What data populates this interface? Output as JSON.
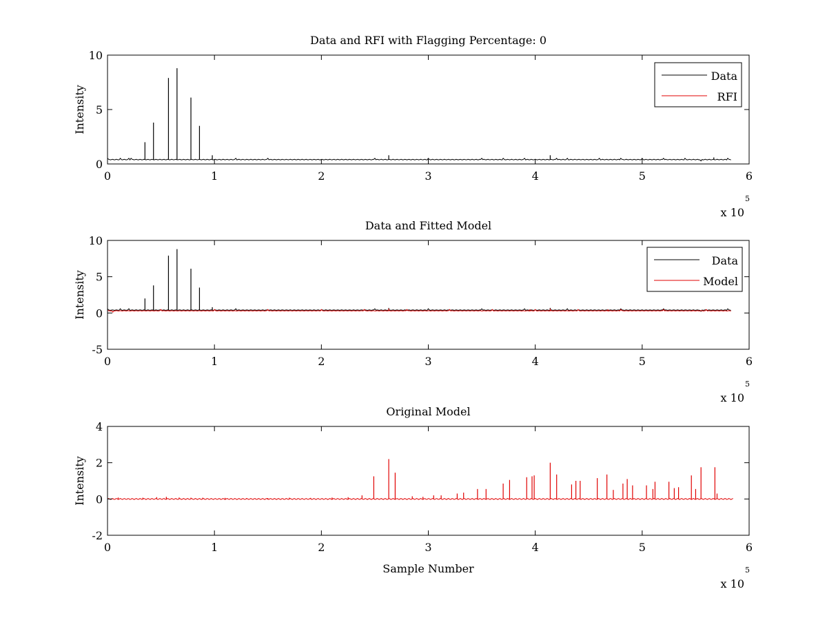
{
  "chart_data": [
    {
      "type": "line",
      "title": "Data and RFI with Flagging Percentage: 0",
      "xlabel": "",
      "ylabel": "Intensity",
      "xlim": [
        0,
        6
      ],
      "ylim": [
        0,
        10
      ],
      "xticks": [
        "0",
        "1",
        "2",
        "3",
        "4",
        "5",
        "6"
      ],
      "yticks": [
        "0",
        "5",
        "10"
      ],
      "x_multiplier": {
        "base": "x 10",
        "power": "5"
      },
      "legend": {
        "position": "top-right",
        "entries": [
          "Data",
          "RFI"
        ]
      },
      "series": [
        {
          "name": "Data",
          "color": "#000000",
          "baseline": 0.4,
          "spikes": [
            [
              0.35,
              2.0
            ],
            [
              0.43,
              3.8
            ],
            [
              0.57,
              7.9
            ],
            [
              0.65,
              8.8
            ],
            [
              0.78,
              6.1
            ],
            [
              0.86,
              3.5
            ],
            [
              0.98,
              0.8
            ],
            [
              2.63,
              0.8
            ],
            [
              4.14,
              0.8
            ],
            [
              5.67,
              0.6
            ]
          ],
          "ripples": [
            0.0,
            0.12,
            0.2,
            0.22,
            1.2,
            1.5,
            2.5,
            3.0,
            3.5,
            3.7,
            3.9,
            4.2,
            4.3,
            4.6,
            4.8,
            5.0,
            5.2,
            5.4,
            5.55,
            5.8
          ],
          "end_x": 5.83
        },
        {
          "name": "RFI",
          "color": "#e00000",
          "baseline": 0,
          "spikes": [],
          "ripples": [],
          "end_x": 0
        }
      ]
    },
    {
      "type": "line",
      "title": "Data and Fitted Model",
      "xlabel": "",
      "ylabel": "Intensity",
      "xlim": [
        0,
        6
      ],
      "ylim": [
        -5,
        10
      ],
      "xticks": [
        "0",
        "1",
        "2",
        "3",
        "4",
        "5",
        "6"
      ],
      "yticks": [
        "-5",
        "0",
        "5",
        "10"
      ],
      "x_multiplier": {
        "base": "x 10",
        "power": "5"
      },
      "legend": {
        "position": "top-right",
        "entries": [
          "Data",
          "Model"
        ]
      },
      "series": [
        {
          "name": "Data",
          "color": "#000000",
          "baseline": 0.4,
          "spikes": [
            [
              0.35,
              2.0
            ],
            [
              0.43,
              3.8
            ],
            [
              0.57,
              7.9
            ],
            [
              0.65,
              8.8
            ],
            [
              0.78,
              6.1
            ],
            [
              0.86,
              3.5
            ],
            [
              0.98,
              0.8
            ],
            [
              2.63,
              0.7
            ],
            [
              4.14,
              0.7
            ]
          ],
          "ripples": [
            0.0,
            0.12,
            0.2,
            1.2,
            2.5,
            3.0,
            3.5,
            3.9,
            4.3,
            4.8,
            5.2,
            5.55,
            5.8
          ],
          "end_x": 5.83
        },
        {
          "name": "Model",
          "color": "#e00000",
          "baseline": 0.3,
          "spikes": [
            [
              2.63,
              0.6
            ],
            [
              3.95,
              0.5
            ],
            [
              4.14,
              0.6
            ],
            [
              4.68,
              0.5
            ],
            [
              5.47,
              0.4
            ]
          ],
          "ripples": [
            0.05,
            0.5,
            1.0,
            1.5,
            2.0,
            2.4,
            2.8,
            3.2,
            3.6,
            4.0,
            4.4,
            4.8,
            5.2,
            5.6
          ],
          "end_x": 5.83
        }
      ]
    },
    {
      "type": "line",
      "title": "Original Model",
      "xlabel": "Sample Number",
      "ylabel": "Intensity",
      "xlim": [
        0,
        6
      ],
      "ylim": [
        -2,
        4
      ],
      "xticks": [
        "0",
        "1",
        "2",
        "3",
        "4",
        "5",
        "6"
      ],
      "yticks": [
        "-2",
        "0",
        "2",
        "4"
      ],
      "x_multiplier": {
        "base": "x 10",
        "power": "5"
      },
      "legend": null,
      "series": [
        {
          "name": "",
          "color": "#e00000",
          "baseline": 0,
          "spikes": [
            [
              0.1,
              0.08
            ],
            [
              0.33,
              0.07
            ],
            [
              0.46,
              0.1
            ],
            [
              0.55,
              0.12
            ],
            [
              0.67,
              0.08
            ],
            [
              0.78,
              0.07
            ],
            [
              0.89,
              0.07
            ],
            [
              1.1,
              0.06
            ],
            [
              1.3,
              0.05
            ],
            [
              1.5,
              0.05
            ],
            [
              1.7,
              0.07
            ],
            [
              1.9,
              0.06
            ],
            [
              2.1,
              0.08
            ],
            [
              2.25,
              0.1
            ],
            [
              2.38,
              0.2
            ],
            [
              2.49,
              1.25
            ],
            [
              2.63,
              2.2
            ],
            [
              2.69,
              1.45
            ],
            [
              2.85,
              0.15
            ],
            [
              2.95,
              0.12
            ],
            [
              3.05,
              0.2
            ],
            [
              3.12,
              0.2
            ],
            [
              3.27,
              0.3
            ],
            [
              3.33,
              0.35
            ],
            [
              3.46,
              0.55
            ],
            [
              3.54,
              0.55
            ],
            [
              3.7,
              0.85
            ],
            [
              3.76,
              1.05
            ],
            [
              3.92,
              1.2
            ],
            [
              3.97,
              1.25
            ],
            [
              3.99,
              1.3
            ],
            [
              4.14,
              2.0
            ],
            [
              4.2,
              1.35
            ],
            [
              4.34,
              0.8
            ],
            [
              4.38,
              1.0
            ],
            [
              4.42,
              1.0
            ],
            [
              4.58,
              1.15
            ],
            [
              4.67,
              1.35
            ],
            [
              4.73,
              0.5
            ],
            [
              4.82,
              0.85
            ],
            [
              4.86,
              1.1
            ],
            [
              4.91,
              0.75
            ],
            [
              5.04,
              0.75
            ],
            [
              5.1,
              0.55
            ],
            [
              5.12,
              0.95
            ],
            [
              5.25,
              0.95
            ],
            [
              5.3,
              0.6
            ],
            [
              5.34,
              0.65
            ],
            [
              5.46,
              1.3
            ],
            [
              5.5,
              0.55
            ],
            [
              5.55,
              1.75
            ],
            [
              5.68,
              1.75
            ],
            [
              5.7,
              0.3
            ]
          ],
          "ripples": [],
          "end_x": 5.85
        }
      ]
    }
  ]
}
